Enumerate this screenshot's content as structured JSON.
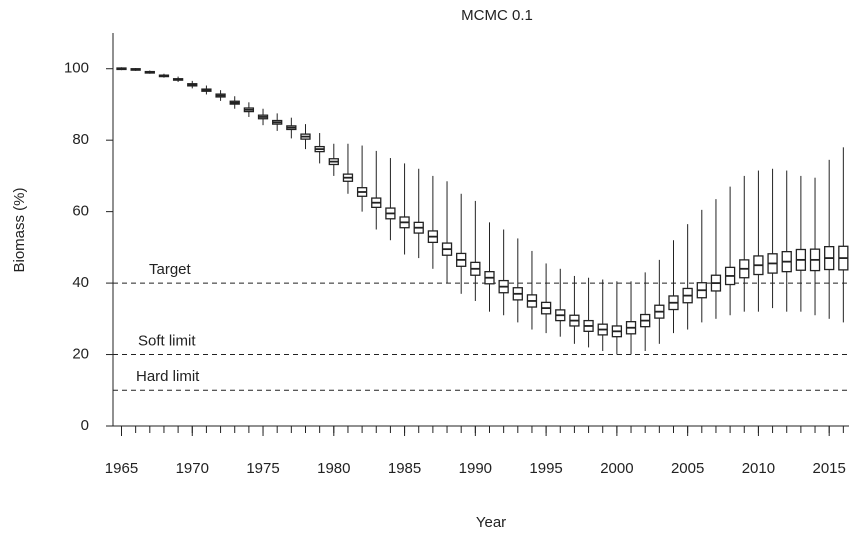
{
  "chart_data": {
    "type": "boxplot",
    "title": "MCMC 0.1",
    "xlabel": "Year",
    "ylabel": "Biomass (%)",
    "x": [
      1965,
      1966,
      1967,
      1968,
      1969,
      1970,
      1971,
      1972,
      1973,
      1974,
      1975,
      1976,
      1977,
      1978,
      1979,
      1980,
      1981,
      1982,
      1983,
      1984,
      1985,
      1986,
      1987,
      1988,
      1989,
      1990,
      1991,
      1992,
      1993,
      1994,
      1995,
      1996,
      1997,
      1998,
      1999,
      2000,
      2001,
      2002,
      2003,
      2004,
      2005,
      2006,
      2007,
      2008,
      2009,
      2010,
      2011,
      2012,
      2013,
      2014,
      2015,
      2016
    ],
    "min": [
      99.6,
      99.4,
      98.6,
      97.5,
      96.3,
      94.5,
      92.8,
      91,
      88.8,
      86.5,
      84.2,
      82.6,
      80.5,
      77.5,
      73.5,
      70,
      65,
      60,
      55,
      52,
      48,
      47,
      44,
      40,
      37,
      35,
      32,
      31,
      29,
      27,
      26,
      25,
      23,
      22,
      21,
      20,
      20,
      21,
      23,
      26,
      27,
      29,
      30,
      31,
      32,
      32,
      33,
      32,
      32,
      31,
      30,
      29
    ],
    "q1": [
      99.8,
      99.6,
      98.8,
      97.8,
      96.8,
      95.2,
      93.7,
      92.1,
      90.1,
      88,
      86,
      84.5,
      83,
      80.3,
      76.8,
      73.2,
      68.5,
      64.3,
      61.2,
      58,
      55.5,
      54,
      51.4,
      47.8,
      44.7,
      42.2,
      39.8,
      37.3,
      35.3,
      33.3,
      31.4,
      29.5,
      28,
      26.5,
      25.5,
      25,
      25.8,
      27.8,
      30.2,
      32.6,
      34.5,
      35.9,
      37.8,
      39.6,
      41.5,
      42.4,
      42.8,
      43.2,
      43.6,
      43.5,
      43.8,
      43.7
    ],
    "median": [
      100,
      99.8,
      99,
      98,
      97,
      95.5,
      94,
      92.5,
      90.5,
      88.5,
      86.5,
      85,
      83.5,
      81,
      77.5,
      74,
      69.5,
      65.5,
      62.5,
      59.5,
      57,
      55.5,
      53,
      49.5,
      46.5,
      44,
      41.5,
      39,
      37,
      35,
      33,
      31,
      29.5,
      28,
      27,
      26.5,
      27.5,
      29.5,
      32,
      34.5,
      36.5,
      38,
      40,
      42,
      44,
      45,
      45.5,
      46,
      46.5,
      46.5,
      47,
      47
    ],
    "q3": [
      100.2,
      100,
      99.2,
      98.2,
      97.2,
      95.8,
      94.3,
      92.9,
      90.9,
      89,
      87,
      85.5,
      84,
      81.7,
      78.2,
      74.8,
      70.5,
      66.7,
      63.8,
      61,
      58.5,
      57,
      54.6,
      51.2,
      48.3,
      45.8,
      43.2,
      40.7,
      38.7,
      36.7,
      34.6,
      32.5,
      31,
      29.5,
      28.5,
      28,
      29.2,
      31.2,
      33.8,
      36.4,
      38.5,
      40.1,
      42.2,
      44.4,
      46.5,
      47.6,
      48.2,
      48.8,
      49.4,
      49.5,
      50.2,
      50.3
    ],
    "max": [
      100.4,
      100.2,
      99.5,
      98.6,
      97.8,
      96.6,
      95.3,
      94,
      92.3,
      90.6,
      88.8,
      87.5,
      86.3,
      84.5,
      82,
      79,
      79,
      78.5,
      77,
      75,
      73.5,
      72,
      70,
      68.5,
      65,
      63,
      57,
      55,
      52.5,
      49,
      45.5,
      44,
      42,
      41.5,
      41,
      40.5,
      40.5,
      43,
      46.5,
      52,
      56.5,
      60.5,
      63.5,
      67,
      70,
      71.5,
      72,
      71.5,
      70,
      69.5,
      74.5,
      78
    ],
    "xlim": [
      1964.4,
      2016.4
    ],
    "xticks": [
      1965,
      1970,
      1975,
      1980,
      1985,
      1990,
      1995,
      2000,
      2005,
      2010,
      2015
    ],
    "ylim": [
      0,
      110
    ],
    "yticks": [
      0,
      20,
      40,
      60,
      80,
      100
    ],
    "reference_lines": [
      {
        "value": 40,
        "label": "Target"
      },
      {
        "value": 20,
        "label": "Soft limit"
      },
      {
        "value": 10,
        "label": "Hard limit"
      }
    ]
  }
}
